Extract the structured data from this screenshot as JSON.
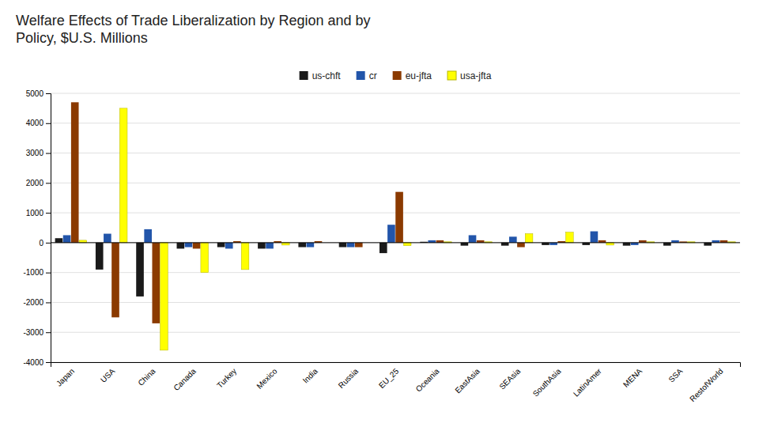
{
  "chart_data": {
    "type": "bar",
    "title": "Welfare Effects of Trade Liberalization by Region and by\nPolicy, $U.S. Millions",
    "categories": [
      "Japan",
      "USA",
      "China",
      "Canada",
      "Turkey",
      "Mexico",
      "India",
      "Russia",
      "EU_25",
      "Oceania",
      "EastAsia",
      "SEAsia",
      "SouthAsia",
      "LatinAmer",
      "MENA",
      "SSA",
      "RestofWorld"
    ],
    "series": [
      {
        "name": "us-chft",
        "color": "#1a1a1a",
        "values": [
          150,
          -900,
          -1800,
          -200,
          -150,
          -200,
          -150,
          -150,
          -350,
          30,
          -100,
          -100,
          -80,
          -80,
          -100,
          -100,
          -100
        ]
      },
      {
        "name": "cr",
        "color": "#2255aa",
        "values": [
          250,
          300,
          450,
          -150,
          -200,
          -200,
          -150,
          -150,
          600,
          80,
          250,
          200,
          -80,
          380,
          -80,
          80,
          80
        ]
      },
      {
        "name": "eu-jfta",
        "color": "#8B3A00",
        "values": [
          4700,
          -2500,
          -2700,
          -200,
          50,
          50,
          50,
          -150,
          1700,
          80,
          80,
          -150,
          50,
          80,
          80,
          40,
          80
        ]
      },
      {
        "name": "usa-jfta",
        "color": "#FFFF00",
        "values": [
          80,
          4500,
          -3600,
          -1000,
          -900,
          -80,
          0,
          0,
          -100,
          30,
          30,
          300,
          350,
          -80,
          30,
          30,
          30
        ]
      }
    ],
    "ylim": [
      -4000,
      5000
    ],
    "yticks": [
      -4000,
      -3000,
      -2000,
      -1000,
      0,
      1000,
      2000,
      3000,
      4000,
      5000
    ],
    "grid": true,
    "legend": "top"
  }
}
